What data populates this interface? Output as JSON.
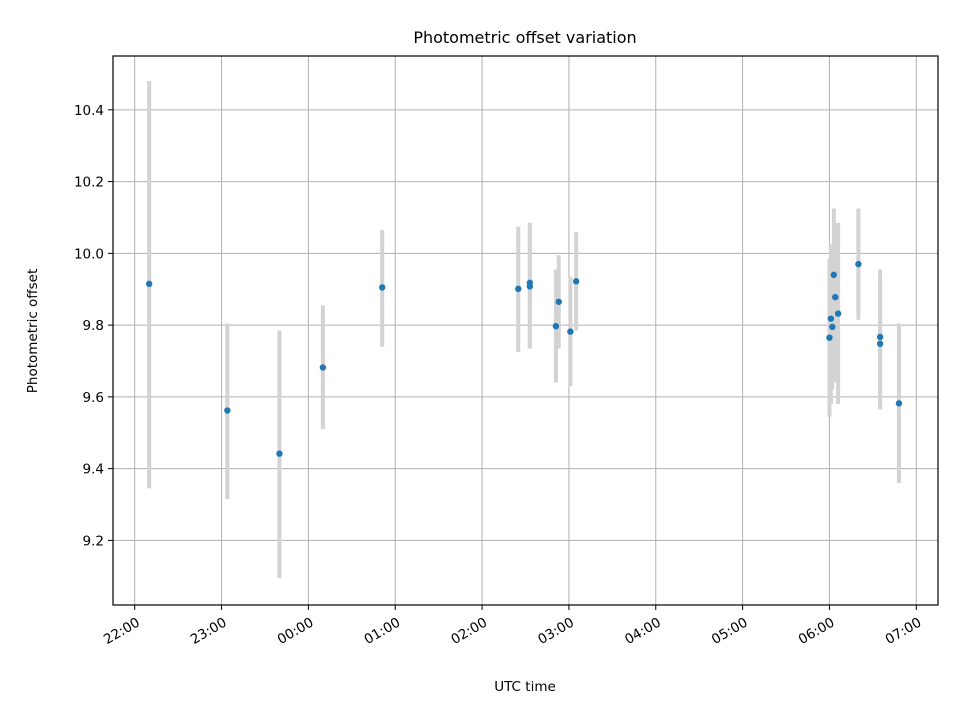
{
  "chart_data": {
    "type": "scatter",
    "title": "Photometric offset variation",
    "xlabel": "UTC time",
    "ylabel": "Photometric offset",
    "x_axis": {
      "kind": "time",
      "ticks": [
        "22:00",
        "23:00",
        "00:00",
        "01:00",
        "02:00",
        "03:00",
        "04:00",
        "05:00",
        "06:00",
        "07:00"
      ],
      "range": [
        "21:45",
        "07:15"
      ]
    },
    "y_axis": {
      "ticks": [
        "9.2",
        "9.4",
        "9.6",
        "9.8",
        "10.0",
        "10.2",
        "10.4"
      ],
      "tick_values": [
        9.2,
        9.4,
        9.6,
        9.8,
        10.0,
        10.2,
        10.4
      ],
      "range": [
        9.02,
        10.55
      ]
    },
    "grid": true,
    "colors": {
      "marker": "#1f77b4",
      "errorbar": "#d3d3d3",
      "grid": "#b0b0b0"
    },
    "points": [
      {
        "time": "22:10",
        "y": 9.915,
        "ylow": 9.345,
        "yhigh": 10.48
      },
      {
        "time": "23:04",
        "y": 9.562,
        "ylow": 9.315,
        "yhigh": 9.805
      },
      {
        "time": "23:40",
        "y": 9.442,
        "ylow": 9.095,
        "yhigh": 9.785
      },
      {
        "time": "00:10",
        "y": 9.682,
        "ylow": 9.51,
        "yhigh": 9.855
      },
      {
        "time": "00:51",
        "y": 9.905,
        "ylow": 9.74,
        "yhigh": 10.065
      },
      {
        "time": "02:25",
        "y": 9.901,
        "ylow": 9.725,
        "yhigh": 10.075
      },
      {
        "time": "02:33",
        "y": 9.918,
        "ylow": 9.735,
        "yhigh": 10.085
      },
      {
        "time": "02:33",
        "y": 9.908,
        "ylow": 9.735,
        "yhigh": 10.08
      },
      {
        "time": "02:51",
        "y": 9.797,
        "ylow": 9.64,
        "yhigh": 9.955
      },
      {
        "time": "02:53",
        "y": 9.865,
        "ylow": 9.735,
        "yhigh": 9.995
      },
      {
        "time": "03:01",
        "y": 9.782,
        "ylow": 9.63,
        "yhigh": 9.935
      },
      {
        "time": "03:05",
        "y": 9.922,
        "ylow": 9.785,
        "yhigh": 10.06
      },
      {
        "time": "06:00",
        "y": 9.765,
        "ylow": 9.545,
        "yhigh": 9.985
      },
      {
        "time": "06:01",
        "y": 9.818,
        "ylow": 9.58,
        "yhigh": 10.025
      },
      {
        "time": "06:02",
        "y": 9.795,
        "ylow": 9.62,
        "yhigh": 9.97
      },
      {
        "time": "06:03",
        "y": 9.94,
        "ylow": 9.77,
        "yhigh": 10.125
      },
      {
        "time": "06:04",
        "y": 9.878,
        "ylow": 9.64,
        "yhigh": 10.085
      },
      {
        "time": "06:06",
        "y": 9.832,
        "ylow": 9.58,
        "yhigh": 10.085
      },
      {
        "time": "06:20",
        "y": 9.97,
        "ylow": 9.815,
        "yhigh": 10.125
      },
      {
        "time": "06:35",
        "y": 9.767,
        "ylow": 9.565,
        "yhigh": 9.955
      },
      {
        "time": "06:35",
        "y": 9.748,
        "ylow": 9.565,
        "yhigh": 9.925
      },
      {
        "time": "06:48",
        "y": 9.582,
        "ylow": 9.36,
        "yhigh": 9.805
      }
    ]
  }
}
